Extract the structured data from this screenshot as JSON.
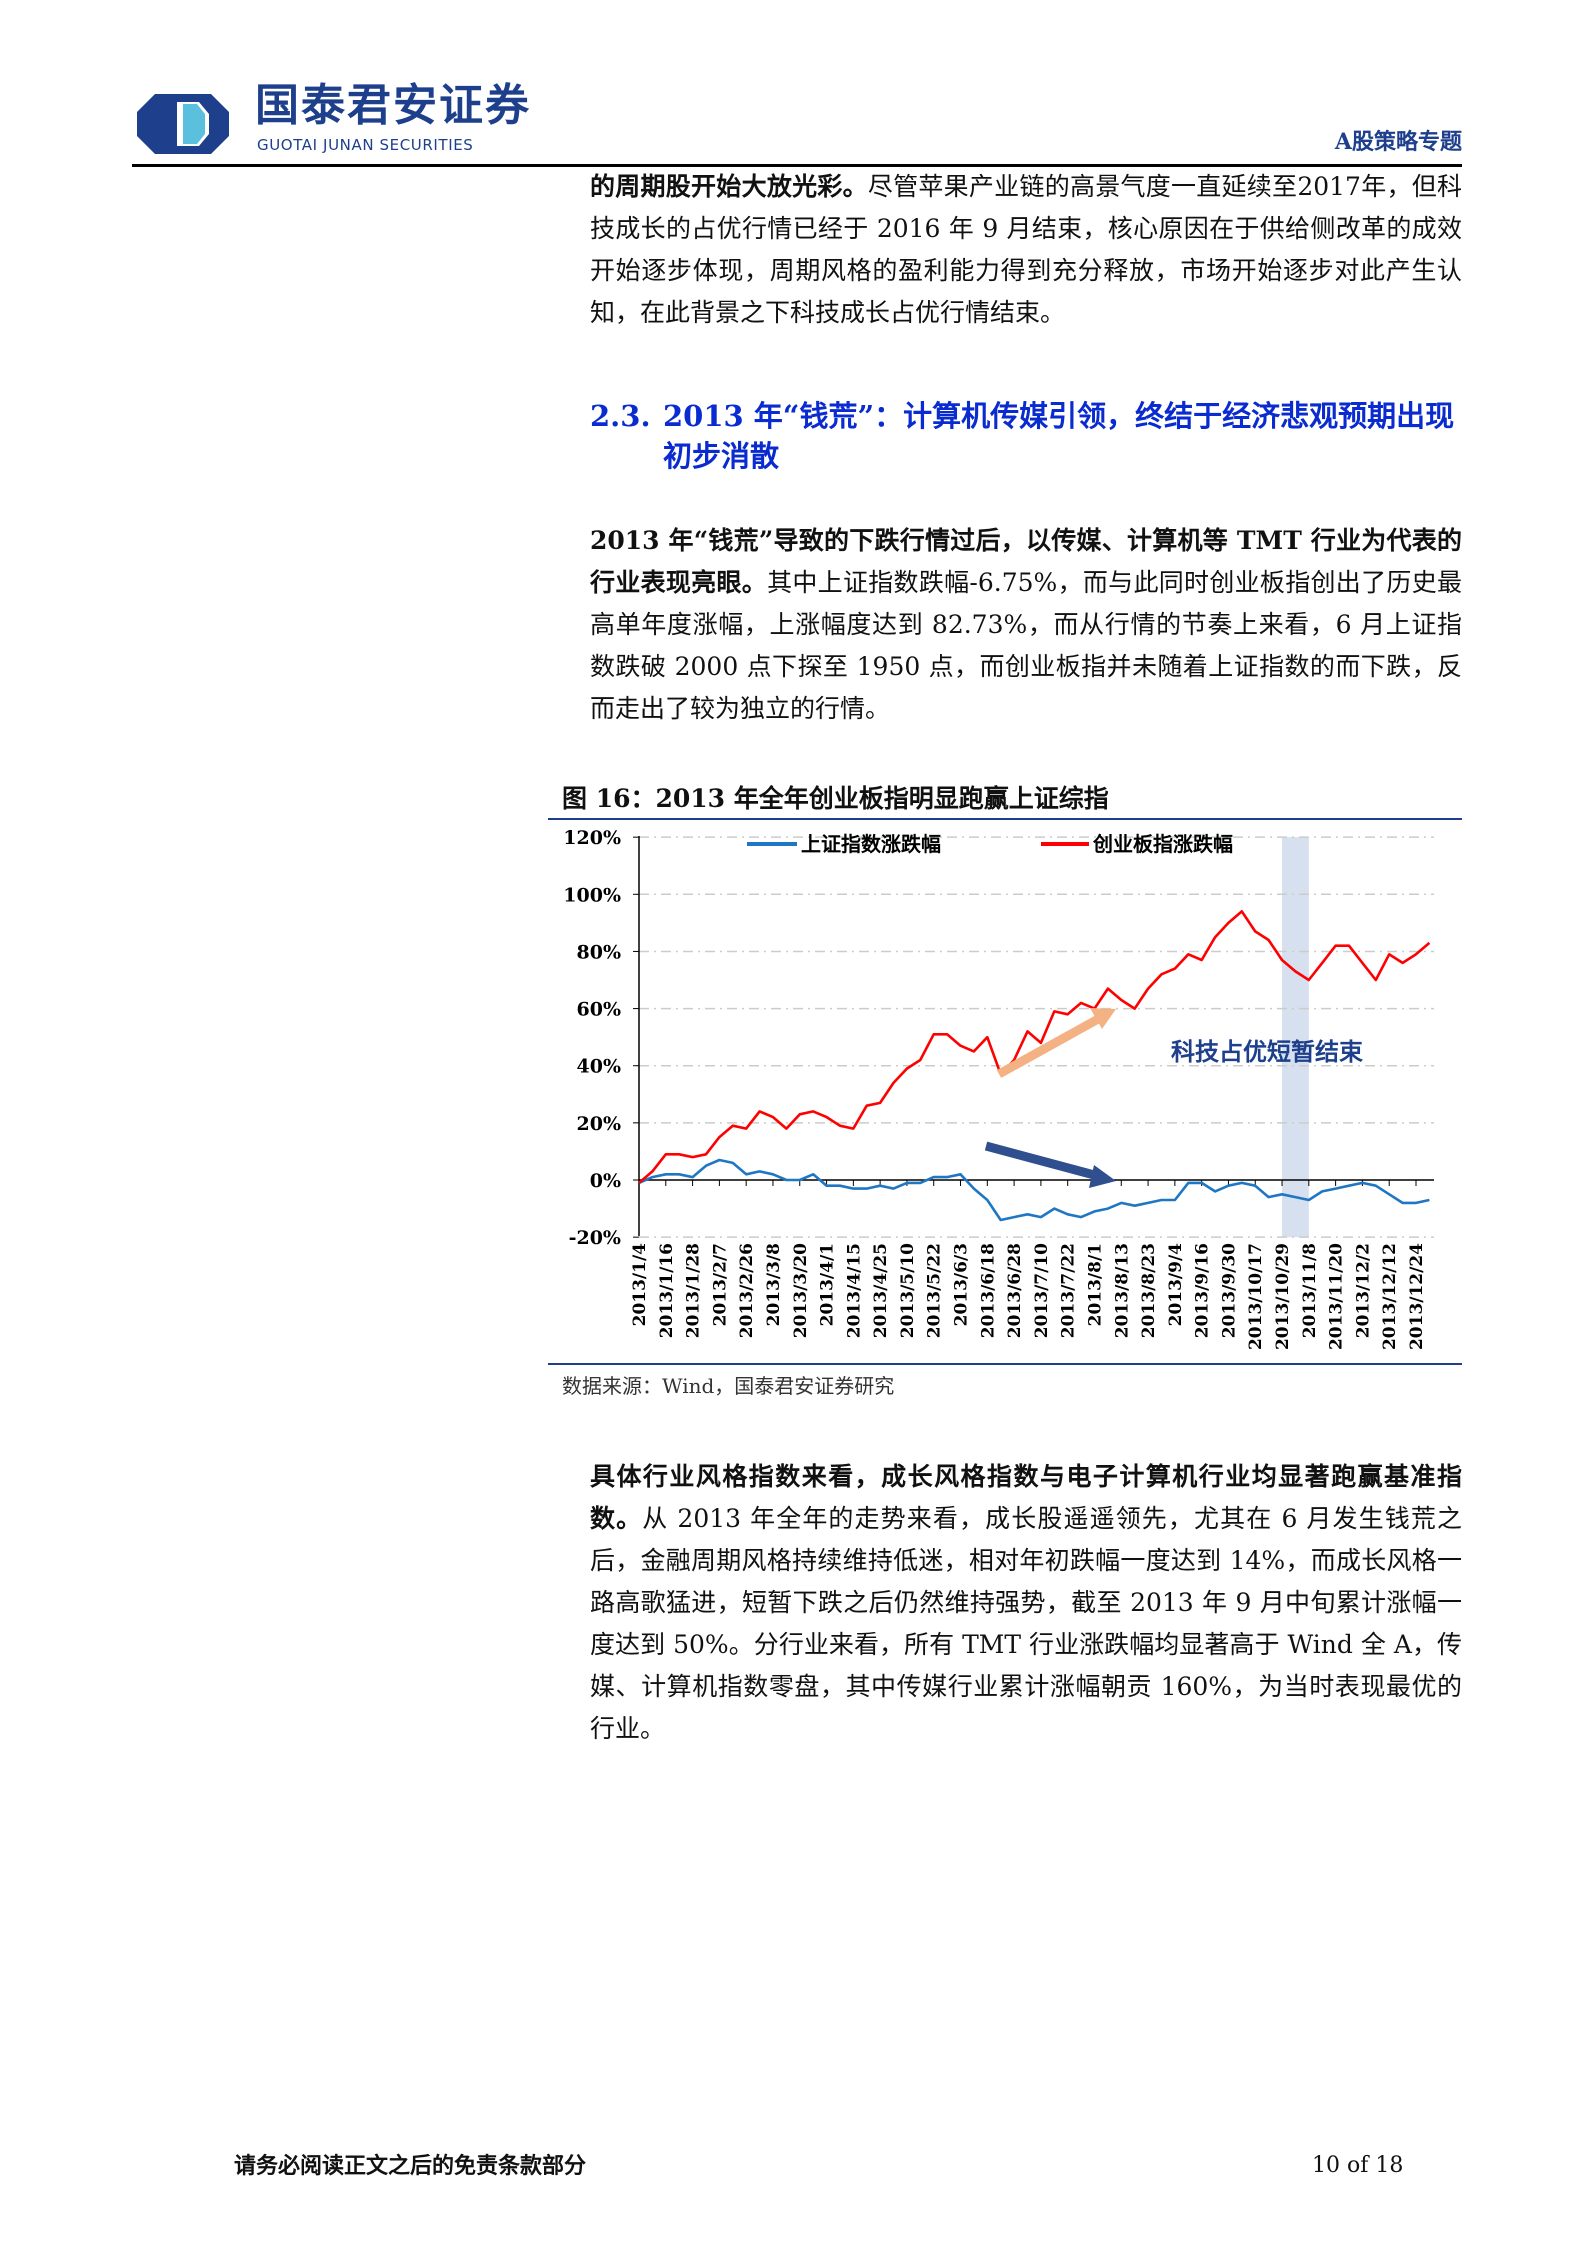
{
  "header": {
    "logo_cn": "国泰君安证券",
    "logo_en": "GUOTAI JUNAN SECURITIES",
    "report_type": "A股策略专题"
  },
  "paragraph1": {
    "bold": "的周期股开始大放光彩。",
    "text": "尽管苹果产业链的高景气度一直延续至2017年，但科技成长的占优行情已经于 2016 年 9 月结束，核心原因在于供给侧改革的成效开始逐步体现，周期风格的盈利能力得到充分释放，市场开始逐步对此产生认知，在此背景之下科技成长占优行情结束。"
  },
  "section": {
    "number": "2.3.",
    "title": "2013 年“钱荒”：计算机传媒引领，终结于经济悲观预期出现初步消散"
  },
  "paragraph2": {
    "bold": "2013 年“钱荒”导致的下跌行情过后，以传媒、计算机等 TMT 行业为代表的行业表现亮眼。",
    "text": "其中上证指数跌幅-6.75%，而与此同时创业板指创出了历史最高单年度涨幅，上涨幅度达到 82.73%，而从行情的节奏上来看，6 月上证指数跌破 2000 点下探至 1950 点，而创业板指并未随着上证指数的而下跌，反而走出了较为独立的行情。"
  },
  "figure": {
    "title": "图 16：2013 年全年创业板指明显跑赢上证综指",
    "source": "数据来源：Wind，国泰君安证券研究"
  },
  "chart_data": {
    "type": "line",
    "title": "图 16：2013 年全年创业板指明显跑赢上证综指",
    "ylim": [
      -20,
      120
    ],
    "yticks": [
      "120%",
      "100%",
      "80%",
      "60%",
      "40%",
      "20%",
      "0%",
      "-20%"
    ],
    "ytick_values": [
      120,
      100,
      80,
      60,
      40,
      20,
      0,
      -20
    ],
    "xtick_labels": [
      "2013/1/4",
      "2013/1/16",
      "2013/1/28",
      "2013/2/7",
      "2013/2/26",
      "2013/3/8",
      "2013/3/20",
      "2013/4/1",
      "2013/4/15",
      "2013/4/25",
      "2013/5/10",
      "2013/5/22",
      "2013/6/3",
      "2013/6/18",
      "2013/6/28",
      "2013/7/10",
      "2013/7/22",
      "2013/8/1",
      "2013/8/13",
      "2013/8/23",
      "2013/9/4",
      "2013/9/16",
      "2013/9/30",
      "2013/10/17",
      "2013/10/29",
      "2013/11/8",
      "2013/11/20",
      "2013/12/2",
      "2013/12/12",
      "2013/12/24"
    ],
    "x": [
      "2013/1/4",
      "2013/1/10",
      "2013/1/16",
      "2013/1/22",
      "2013/1/28",
      "2013/2/1",
      "2013/2/7",
      "2013/2/20",
      "2013/2/26",
      "2013/3/4",
      "2013/3/8",
      "2013/3/14",
      "2013/3/20",
      "2013/3/26",
      "2013/4/1",
      "2013/4/9",
      "2013/4/15",
      "2013/4/19",
      "2013/4/25",
      "2013/5/3",
      "2013/5/10",
      "2013/5/16",
      "2013/5/22",
      "2013/5/28",
      "2013/6/3",
      "2013/6/7",
      "2013/6/18",
      "2013/6/24",
      "2013/6/28",
      "2013/7/4",
      "2013/7/10",
      "2013/7/16",
      "2013/7/22",
      "2013/7/26",
      "2013/8/1",
      "2013/8/7",
      "2013/8/13",
      "2013/8/19",
      "2013/8/23",
      "2013/8/29",
      "2013/9/4",
      "2013/9/10",
      "2013/9/16",
      "2013/9/24",
      "2013/9/30",
      "2013/10/11",
      "2013/10/17",
      "2013/10/23",
      "2013/10/29",
      "2013/11/4",
      "2013/11/8",
      "2013/11/14",
      "2013/11/20",
      "2013/11/26",
      "2013/12/2",
      "2013/12/6",
      "2013/12/12",
      "2013/12/18",
      "2013/12/24",
      "2013/12/31"
    ],
    "series": [
      {
        "name": "上证指数涨跌幅",
        "color": "#1f77c4",
        "values": [
          -1,
          1,
          2,
          2,
          1,
          5,
          7,
          6,
          2,
          3,
          2,
          0,
          0,
          2,
          -2,
          -2,
          -3,
          -3,
          -2,
          -3,
          -1,
          -1,
          1,
          1,
          2,
          -3,
          -7,
          -14,
          -13,
          -12,
          -13,
          -10,
          -12,
          -13,
          -11,
          -10,
          -8,
          -9,
          -8,
          -7,
          -7,
          -1,
          -1,
          -4,
          -2,
          -1,
          -2,
          -6,
          -5,
          -6,
          -7,
          -4,
          -3,
          -2,
          -1,
          -2,
          -5,
          -8,
          -8,
          -7
        ]
      },
      {
        "name": "创业板指涨跌幅",
        "color": "#ff0000",
        "values": [
          -1,
          3,
          9,
          9,
          8,
          9,
          15,
          19,
          18,
          24,
          22,
          18,
          23,
          24,
          22,
          19,
          18,
          26,
          27,
          34,
          39,
          42,
          51,
          51,
          47,
          45,
          50,
          37,
          42,
          52,
          48,
          59,
          58,
          62,
          60,
          67,
          63,
          60,
          67,
          72,
          74,
          79,
          77,
          85,
          90,
          94,
          87,
          84,
          77,
          73,
          70,
          76,
          82,
          82,
          76,
          70,
          79,
          76,
          79,
          83
        ]
      }
    ],
    "legend": "top",
    "grid": "horizontal dashed",
    "shaded_period": [
      "2013/10/29",
      "2013/11/8"
    ],
    "annotation": "科技占优短暂结束",
    "arrow_colors": {
      "up": "#f4b183",
      "down": "#2f4f8f"
    }
  },
  "paragraph3": {
    "bold": "具体行业风格指数来看，成长风格指数与电子计算机行业均显著跑赢基准指数。",
    "text": "从 2013 年全年的走势来看，成长股遥遥领先，尤其在 6 月发生钱荒之后，金融周期风格持续维持低迷，相对年初跌幅一度达到 14%，而成长风格一路高歌猛进，短暂下跌之后仍然维持强势，截至 2013 年 9 月中旬累计涨幅一度达到 50%。分行业来看，所有 TMT 行业涨跌幅均显著高于 Wind 全 A，传媒、计算机指数零盘，其中传媒行业累计涨幅朝贡 160%，为当时表现最优的行业。"
  },
  "footer": {
    "disclaimer": "请务必阅读正文之后的免责条款部分",
    "page": "10 of 18"
  }
}
